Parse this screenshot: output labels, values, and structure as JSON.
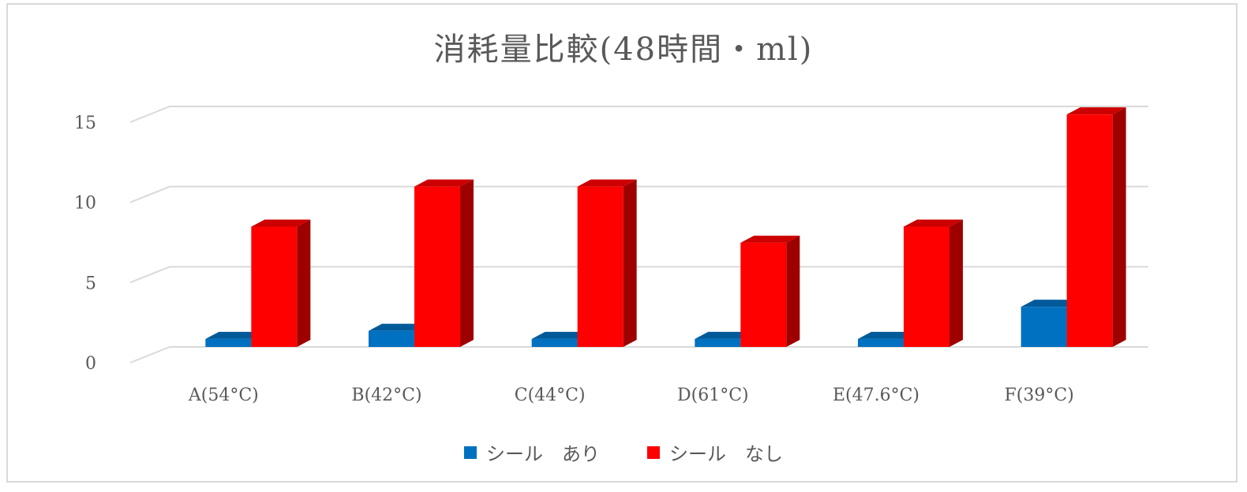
{
  "chart_data": {
    "type": "bar",
    "title": "消耗量比較(48時間・ml)",
    "categories": [
      "A(54°C)",
      "B(42°C)",
      "C(44°C)",
      "D(61°C)",
      "E(47.6°C)",
      "F(39°C)"
    ],
    "series": [
      {
        "name": "シール　あり",
        "values": [
          0.5,
          1.0,
          0.5,
          0.5,
          0.5,
          2.5
        ],
        "color": "#0070C0"
      },
      {
        "name": "シール　なし",
        "values": [
          7.5,
          10,
          10,
          6.5,
          7.5,
          14.5
        ],
        "color": "#FF0000"
      }
    ],
    "yticks": [
      "0",
      "5",
      "10",
      "15"
    ],
    "ylim": [
      0,
      15
    ],
    "grid": true,
    "legend": "bottom",
    "style": "3d-column"
  }
}
